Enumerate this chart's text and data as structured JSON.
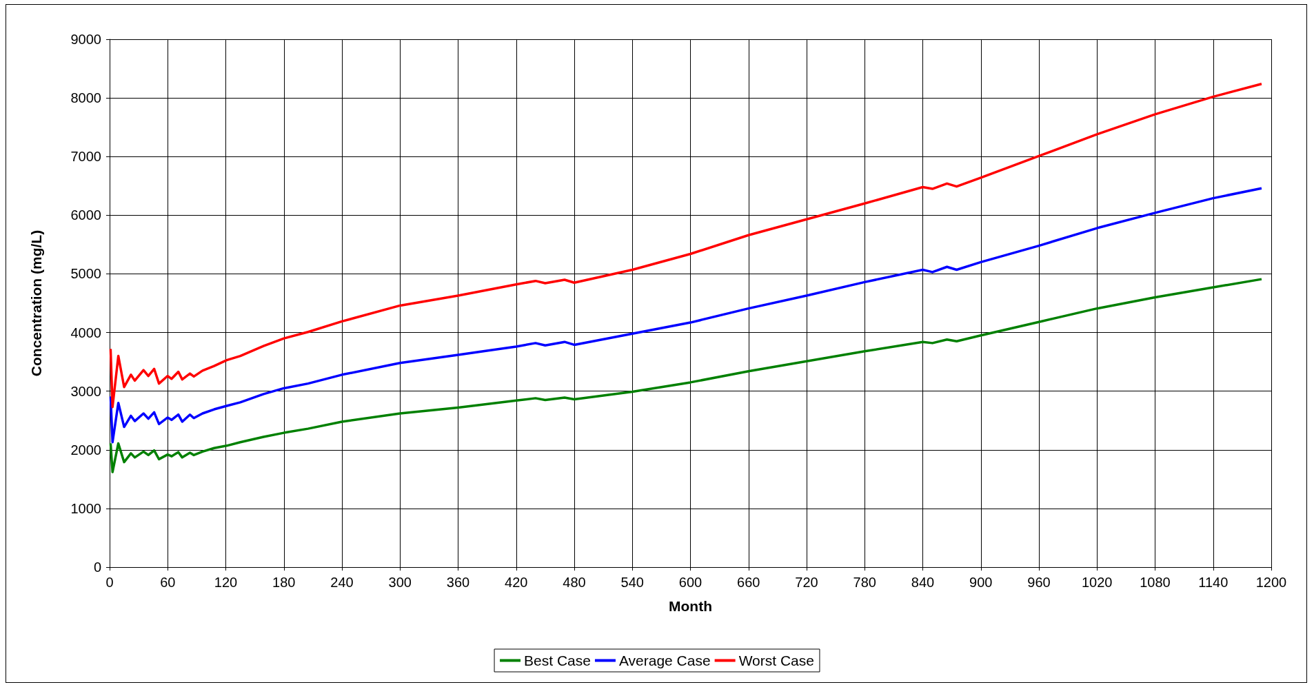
{
  "chart_data": {
    "type": "line",
    "xlabel": "Month",
    "ylabel": "Concentration (mg/L)",
    "xlim": [
      0,
      1200
    ],
    "xticks": [
      0,
      60,
      120,
      180,
      240,
      300,
      360,
      420,
      480,
      540,
      600,
      660,
      720,
      780,
      840,
      900,
      960,
      1020,
      1080,
      1140,
      1200
    ],
    "ylim": [
      0,
      9000
    ],
    "yticks": [
      0,
      1000,
      2000,
      3000,
      4000,
      5000,
      6000,
      7000,
      8000,
      9000
    ],
    "grid": true,
    "legend": "bottom",
    "marker": "none",
    "line_style": "solid",
    "x": [
      1,
      3,
      9,
      15,
      22,
      26,
      35,
      40,
      46,
      51,
      60,
      64,
      71,
      75,
      83,
      87,
      96,
      108,
      121,
      135,
      159,
      180,
      205,
      240,
      300,
      360,
      420,
      440,
      450,
      470,
      480,
      540,
      600,
      660,
      720,
      780,
      840,
      850,
      865,
      875,
      900,
      960,
      1020,
      1080,
      1140,
      1190
    ],
    "series": [
      {
        "name": "Best Case",
        "color": "#008000",
        "values": [
          2110,
          1620,
          2110,
          1790,
          1940,
          1870,
          1970,
          1910,
          1990,
          1840,
          1920,
          1890,
          1960,
          1870,
          1950,
          1910,
          1970,
          2030,
          2070,
          2130,
          2220,
          2290,
          2360,
          2480,
          2620,
          2720,
          2840,
          2880,
          2850,
          2890,
          2860,
          2990,
          3150,
          3340,
          3510,
          3680,
          3840,
          3820,
          3880,
          3850,
          3950,
          4180,
          4410,
          4600,
          4770,
          4910
        ]
      },
      {
        "name": "Average Case",
        "color": "#0000ff",
        "values": [
          2910,
          2130,
          2800,
          2390,
          2580,
          2490,
          2620,
          2530,
          2640,
          2440,
          2550,
          2510,
          2600,
          2480,
          2600,
          2540,
          2620,
          2690,
          2750,
          2810,
          2950,
          3050,
          3130,
          3280,
          3480,
          3620,
          3760,
          3820,
          3780,
          3840,
          3790,
          3980,
          4170,
          4410,
          4630,
          4860,
          5070,
          5030,
          5120,
          5070,
          5200,
          5480,
          5780,
          6040,
          6290,
          6460
        ]
      },
      {
        "name": "Worst Case",
        "color": "#ff0000",
        "values": [
          3720,
          2730,
          3600,
          3070,
          3280,
          3180,
          3360,
          3260,
          3380,
          3130,
          3260,
          3210,
          3330,
          3200,
          3300,
          3250,
          3350,
          3430,
          3530,
          3600,
          3770,
          3900,
          4010,
          4190,
          4460,
          4630,
          4820,
          4880,
          4840,
          4900,
          4850,
          5070,
          5340,
          5660,
          5930,
          6200,
          6480,
          6450,
          6540,
          6490,
          6640,
          7010,
          7380,
          7720,
          8020,
          8240
        ]
      }
    ]
  }
}
